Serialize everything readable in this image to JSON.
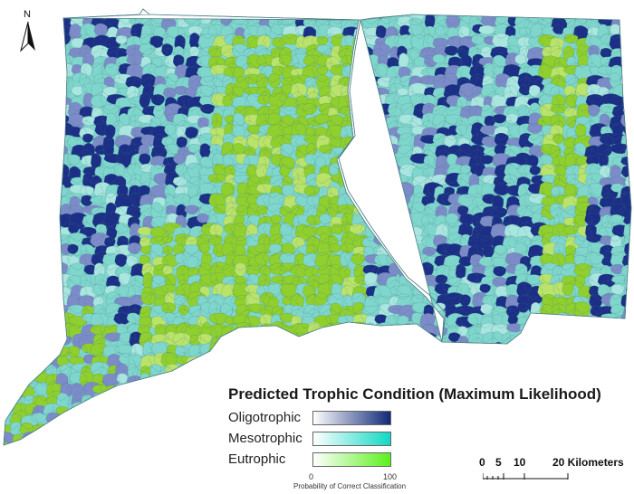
{
  "map": {
    "north_label": "N",
    "colors": {
      "oligotrophic": "#1c2f86",
      "oligotrophic_light": "#7c8cc8",
      "mesotrophic": "#7fd6cc",
      "mesotrophic_light": "#a8e6df",
      "eutrophic": "#8fcf2e",
      "eutrophic_light": "#b9e36a",
      "background": "#ffffff"
    }
  },
  "legend": {
    "title": "Predicted Trophic Condition (Maximum Likelihood)",
    "classes": [
      {
        "label": "Oligotrophic",
        "color": "#102a78"
      },
      {
        "label": "Mesotrophic",
        "color": "#10d8c4"
      },
      {
        "label": "Eutrophic",
        "color": "#5cf01e"
      }
    ],
    "axis_min": "0",
    "axis_max": "100",
    "axis_caption": "Probability of Correct Classification"
  },
  "scale_bar": {
    "labels": [
      "0",
      "5",
      "10",
      "20 Kilometers"
    ]
  }
}
